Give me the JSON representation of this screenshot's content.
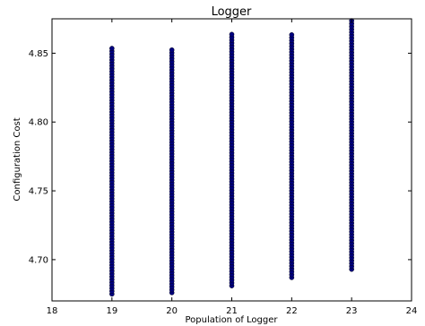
{
  "chart_data": {
    "type": "scatter",
    "title": "Logger",
    "xlabel": "Population of Logger",
    "ylabel": "Configuration Cost",
    "xlim": [
      18,
      24
    ],
    "ylim": [
      4.67,
      4.875
    ],
    "x_ticks": [
      "18",
      "19",
      "20",
      "21",
      "22",
      "23",
      "24"
    ],
    "y_ticks": [
      "4.70",
      "4.75",
      "4.80",
      "4.85"
    ],
    "grid": false,
    "series": [
      {
        "color": "#00007f",
        "x": [
          19,
          20,
          21,
          22,
          23
        ],
        "y_min": [
          4.675,
          4.676,
          4.681,
          4.687,
          4.693
        ],
        "y_max": [
          4.854,
          4.854,
          4.865,
          4.865,
          4.875
        ]
      }
    ]
  }
}
